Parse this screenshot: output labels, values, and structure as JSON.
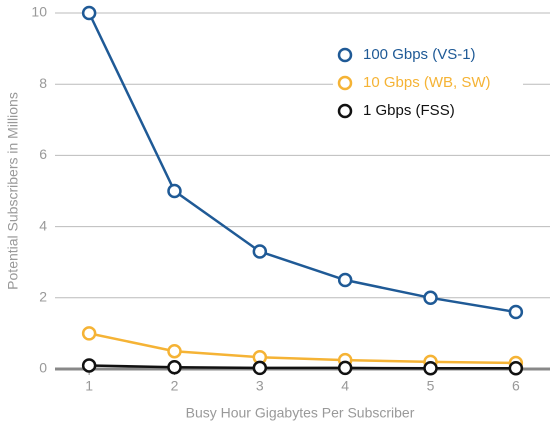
{
  "chart_data": {
    "type": "line",
    "xlabel": "Busy Hour Gigabytes Per Subscriber",
    "ylabel": "Potential Subscribers in Millions",
    "x": [
      1,
      2,
      3,
      4,
      5,
      6
    ],
    "series": [
      {
        "name": "100 Gbps (VS-1)",
        "color": "#1f5a96",
        "values": [
          10,
          5,
          3.3,
          2.5,
          2,
          1.6
        ]
      },
      {
        "name": "10 Gbps (WB, SW)",
        "color": "#f5b335",
        "values": [
          1,
          0.5,
          0.33,
          0.25,
          0.2,
          0.17
        ]
      },
      {
        "name": "1 Gbps (FSS)",
        "color": "#111111",
        "values": [
          0.1,
          0.05,
          0.03,
          0.03,
          0.02,
          0.02
        ]
      }
    ],
    "xlim": [
      0.6,
      6.4
    ],
    "xticks": [
      1,
      2,
      3,
      4,
      5,
      6
    ],
    "ylim": [
      0,
      10
    ],
    "yticks": [
      0,
      2,
      4,
      6,
      8,
      10
    ],
    "grid": true,
    "legend": "upper right"
  }
}
